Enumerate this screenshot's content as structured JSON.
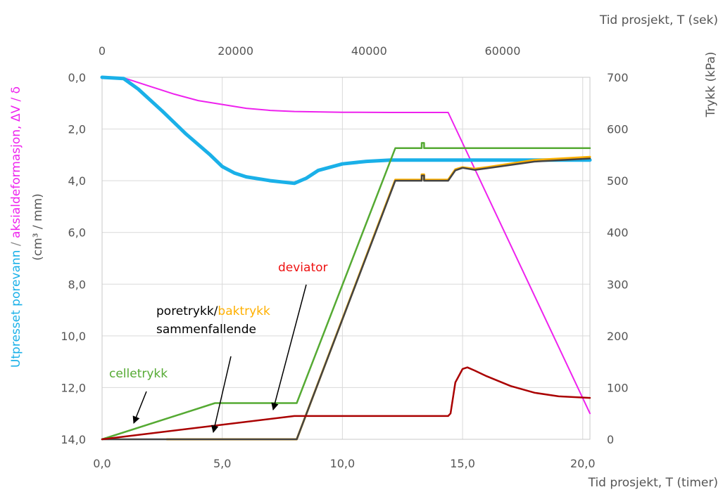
{
  "chart_data": {
    "type": "line",
    "title": "",
    "axes": {
      "x_bottom": {
        "label": "Tid prosjekt, T (timer)",
        "range": [
          0,
          20.3
        ],
        "ticks": [
          "0,0",
          "5,0",
          "10,0",
          "15,0",
          "20,0"
        ],
        "tick_values": [
          0,
          5,
          10,
          15,
          20
        ]
      },
      "x_top": {
        "label": "Tid prosjekt, T (sek)",
        "range": [
          0,
          73080
        ],
        "ticks": [
          "0",
          "20000",
          "40000",
          "60000"
        ],
        "tick_values": [
          0,
          20000,
          40000,
          60000
        ]
      },
      "y_left": {
        "label_parts": [
          {
            "text": "Utpresset porevann",
            "color": "#1ab0e8"
          },
          {
            "text": " / ",
            "color": "#888888"
          },
          {
            "text": "aksialdeformasjon",
            "color": "#ee22ee"
          },
          {
            "text": ", ΔV / δ",
            "color": "#ee22ee"
          }
        ],
        "label_line2": "(cm³ / mm)",
        "inverted": true,
        "range": [
          0,
          14
        ],
        "ticks": [
          "0,0",
          "2,0",
          "4,0",
          "6,0",
          "8,0",
          "10,0",
          "12,0",
          "14,0"
        ],
        "tick_values": [
          0,
          2,
          4,
          6,
          8,
          10,
          12,
          14
        ]
      },
      "y_right": {
        "label": "Trykk (kPa)",
        "range": [
          0,
          700
        ],
        "ticks": [
          "0",
          "100",
          "200",
          "300",
          "400",
          "500",
          "600",
          "700"
        ],
        "tick_values": [
          0,
          100,
          200,
          300,
          400,
          500,
          600,
          700
        ]
      }
    },
    "grid": true,
    "series": [
      {
        "axis": "left",
        "color": "#ee22ee",
        "width": 2,
        "points": [
          [
            0,
            0
          ],
          [
            1.0,
            0.05
          ],
          [
            2,
            0.35
          ],
          [
            3,
            0.65
          ],
          [
            4,
            0.9
          ],
          [
            5,
            1.05
          ],
          [
            6,
            1.2
          ],
          [
            7,
            1.28
          ],
          [
            8,
            1.32
          ],
          [
            10,
            1.35
          ],
          [
            12,
            1.36
          ],
          [
            14.4,
            1.36
          ],
          [
            20.3,
            13.0
          ]
        ]
      },
      {
        "axis": "left",
        "color": "#1ab0e8",
        "width": 5,
        "points": [
          [
            0,
            0
          ],
          [
            0.9,
            0.05
          ],
          [
            1.5,
            0.45
          ],
          [
            2.5,
            1.3
          ],
          [
            3.5,
            2.2
          ],
          [
            4.5,
            3.0
          ],
          [
            5,
            3.45
          ],
          [
            5.5,
            3.7
          ],
          [
            6,
            3.85
          ],
          [
            7,
            4.0
          ],
          [
            8,
            4.1
          ],
          [
            8.5,
            3.9
          ],
          [
            9,
            3.6
          ],
          [
            10,
            3.35
          ],
          [
            11,
            3.25
          ],
          [
            12,
            3.2
          ],
          [
            14,
            3.2
          ],
          [
            20.3,
            3.2
          ]
        ]
      },
      {
        "axis": "right",
        "color": "#55aa33",
        "width": 2.5,
        "points": [
          [
            0,
            0
          ],
          [
            4.7,
            70
          ],
          [
            8.1,
            70
          ],
          [
            12.2,
            563
          ],
          [
            13.3,
            563
          ],
          [
            13.3,
            573
          ],
          [
            13.4,
            573
          ],
          [
            13.4,
            563
          ],
          [
            20.3,
            563
          ]
        ]
      },
      {
        "axis": "right",
        "color": "#ffb000",
        "width": 3,
        "points": [
          [
            2.7,
            0
          ],
          [
            8.1,
            0
          ],
          [
            12.2,
            502
          ],
          [
            13.3,
            502
          ],
          [
            13.3,
            512
          ],
          [
            13.4,
            512
          ],
          [
            13.4,
            502
          ],
          [
            14.4,
            502
          ],
          [
            14.7,
            522
          ],
          [
            15,
            526
          ],
          [
            15.5,
            523
          ],
          [
            16,
            526
          ],
          [
            18,
            540
          ],
          [
            20.3,
            546
          ]
        ]
      },
      {
        "axis": "right",
        "color": "#444444",
        "width": 2.5,
        "points": [
          [
            0,
            0
          ],
          [
            8.1,
            0
          ],
          [
            12.2,
            500
          ],
          [
            13.3,
            500
          ],
          [
            13.3,
            510
          ],
          [
            13.4,
            510
          ],
          [
            13.4,
            500
          ],
          [
            14.4,
            500
          ],
          [
            14.7,
            520
          ],
          [
            15,
            525
          ],
          [
            15.5,
            521
          ],
          [
            16,
            524
          ],
          [
            18,
            537
          ],
          [
            20.3,
            543
          ]
        ]
      },
      {
        "axis": "right",
        "color": "#aa0000",
        "width": 2.5,
        "points": [
          [
            0,
            0
          ],
          [
            8,
            45
          ],
          [
            14.4,
            45
          ],
          [
            14.5,
            50
          ],
          [
            14.7,
            110
          ],
          [
            15,
            136
          ],
          [
            15.2,
            139
          ],
          [
            15.5,
            133
          ],
          [
            16,
            122
          ],
          [
            17,
            103
          ],
          [
            18,
            90
          ],
          [
            19,
            83
          ],
          [
            20.3,
            80
          ]
        ]
      }
    ],
    "annotations": [
      {
        "lines": [
          [
            {
              "text": "deviator",
              "color": "#ee1111"
            }
          ]
        ]
      },
      {
        "lines": [
          [
            {
              "text": "poretrykk/",
              "color": "#000000"
            },
            {
              "text": "baktrykk",
              "color": "#ffb000"
            }
          ],
          [
            {
              "text": "sammenfallende",
              "color": "#000000"
            }
          ]
        ]
      },
      {
        "lines": [
          [
            {
              "text": "celletrykk",
              "color": "#55aa33"
            }
          ]
        ]
      }
    ]
  }
}
